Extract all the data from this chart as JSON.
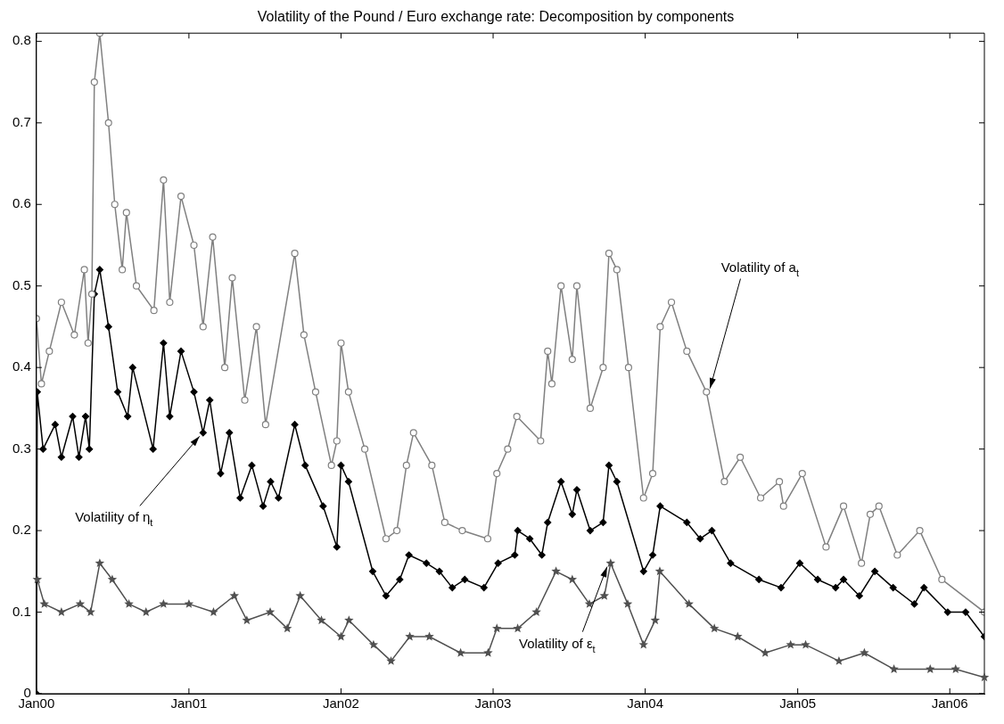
{
  "chart_data": {
    "type": "line",
    "title": "Volatility of the Pound / Euro exchange rate: Decomposition by components",
    "xlim": [
      "2000-01-01",
      "2006-03-25"
    ],
    "xticks": [
      {
        "value": "2000-01-01",
        "label": "Jan00"
      },
      {
        "value": "2001-01-01",
        "label": "Jan01"
      },
      {
        "value": "2002-01-01",
        "label": "Jan02"
      },
      {
        "value": "2003-01-01",
        "label": "Jan03"
      },
      {
        "value": "2004-01-01",
        "label": "Jan04"
      },
      {
        "value": "2005-01-01",
        "label": "Jan05"
      },
      {
        "value": "2006-01-01",
        "label": "Jan06"
      }
    ],
    "ylim": [
      0,
      0.81
    ],
    "yticks": [
      0,
      0.1,
      0.2,
      0.3,
      0.4,
      0.5,
      0.6,
      0.7,
      0.8
    ],
    "grid": false,
    "legend": false,
    "line_style": "solid",
    "series": [
      {
        "color": "#808080",
        "marker": "circle",
        "x": [
          "2000-01-01",
          "2000-01-13",
          "2000-02-01",
          "2000-03-01",
          "2000-04-01",
          "2000-04-25",
          "2000-05-04",
          "2000-05-13",
          "2000-05-19",
          "2000-06-01",
          "2000-06-22",
          "2000-07-07",
          "2000-07-25",
          "2000-08-04",
          "2000-08-28",
          "2000-10-09",
          "2000-11-01",
          "2000-11-16",
          "2000-12-13",
          "2001-01-13",
          "2001-02-04",
          "2001-02-27",
          "2001-03-28",
          "2001-04-15",
          "2001-05-15",
          "2001-06-12",
          "2001-07-04",
          "2001-09-12",
          "2001-10-04",
          "2001-11-01",
          "2001-12-09",
          "2001-12-22",
          "2002-01-01",
          "2002-01-19",
          "2002-02-27",
          "2002-04-19",
          "2002-05-15",
          "2002-06-07",
          "2002-06-24",
          "2002-08-07",
          "2002-09-07",
          "2002-10-19",
          "2002-12-19",
          "2003-01-10",
          "2003-02-05",
          "2003-02-27",
          "2003-04-25",
          "2003-05-12",
          "2003-05-22",
          "2003-06-13",
          "2003-07-10",
          "2003-07-21",
          "2003-08-22",
          "2003-09-22",
          "2003-10-06",
          "2003-10-25",
          "2003-11-22",
          "2003-12-28",
          "2004-01-19",
          "2004-02-06",
          "2004-03-04",
          "2004-04-10",
          "2004-05-27",
          "2004-07-09",
          "2004-08-16",
          "2004-10-04",
          "2004-11-18",
          "2004-11-28",
          "2005-01-12",
          "2005-03-10",
          "2005-04-21",
          "2005-06-03",
          "2005-06-24",
          "2005-07-15",
          "2005-08-28",
          "2005-10-21",
          "2005-12-13",
          "2006-03-25"
        ],
        "values": [
          0.46,
          0.38,
          0.42,
          0.48,
          0.44,
          0.52,
          0.43,
          0.49,
          0.75,
          0.81,
          0.7,
          0.6,
          0.52,
          0.59,
          0.5,
          0.47,
          0.63,
          0.48,
          0.61,
          0.55,
          0.45,
          0.56,
          0.4,
          0.51,
          0.36,
          0.45,
          0.33,
          0.54,
          0.44,
          0.37,
          0.28,
          0.31,
          0.43,
          0.37,
          0.3,
          0.19,
          0.2,
          0.28,
          0.32,
          0.28,
          0.21,
          0.2,
          0.19,
          0.27,
          0.3,
          0.34,
          0.31,
          0.42,
          0.38,
          0.5,
          0.41,
          0.5,
          0.35,
          0.4,
          0.54,
          0.52,
          0.4,
          0.24,
          0.27,
          0.45,
          0.48,
          0.42,
          0.37,
          0.26,
          0.29,
          0.24,
          0.26,
          0.23,
          0.27,
          0.18,
          0.23,
          0.16,
          0.22,
          0.23,
          0.17,
          0.2,
          0.14,
          0.1
        ]
      },
      {
        "color": "#000000",
        "marker": "diamond",
        "x": [
          "2000-01-01",
          "2000-01-03",
          "2000-01-17",
          "2000-02-15",
          "2000-03-01",
          "2000-03-28",
          "2000-04-12",
          "2000-04-28",
          "2000-05-07",
          "2000-05-19",
          "2000-06-01",
          "2000-06-22",
          "2000-07-14",
          "2000-08-07",
          "2000-08-19",
          "2000-10-07",
          "2000-11-01",
          "2000-11-16",
          "2000-12-13",
          "2001-01-13",
          "2001-02-04",
          "2001-02-20",
          "2001-03-18",
          "2001-04-08",
          "2001-05-04",
          "2001-06-01",
          "2001-06-28",
          "2001-07-16",
          "2001-08-04",
          "2001-09-12",
          "2001-10-07",
          "2001-11-19",
          "2001-12-22",
          "2002-01-01",
          "2002-01-19",
          "2002-03-18",
          "2002-04-19",
          "2002-05-22",
          "2002-06-13",
          "2002-07-25",
          "2002-08-25",
          "2002-09-25",
          "2002-10-25",
          "2002-12-10",
          "2003-01-13",
          "2003-02-22",
          "2003-03-01",
          "2003-03-30",
          "2003-04-28",
          "2003-05-12",
          "2003-06-13",
          "2003-07-10",
          "2003-07-21",
          "2003-08-22",
          "2003-09-22",
          "2003-10-06",
          "2003-10-25",
          "2003-12-28",
          "2004-01-19",
          "2004-02-06",
          "2004-04-10",
          "2004-05-12",
          "2004-06-09",
          "2004-07-24",
          "2004-09-30",
          "2004-11-22",
          "2005-01-06",
          "2005-02-18",
          "2005-04-02",
          "2005-04-21",
          "2005-05-29",
          "2005-07-05",
          "2005-08-18",
          "2005-10-08",
          "2005-10-31",
          "2005-12-27",
          "2006-02-08",
          "2006-03-25"
        ],
        "values": [
          0,
          0.37,
          0.3,
          0.33,
          0.29,
          0.34,
          0.29,
          0.34,
          0.3,
          0.49,
          0.52,
          0.45,
          0.37,
          0.34,
          0.4,
          0.3,
          0.43,
          0.34,
          0.42,
          0.37,
          0.32,
          0.36,
          0.27,
          0.32,
          0.24,
          0.28,
          0.23,
          0.26,
          0.24,
          0.33,
          0.28,
          0.23,
          0.18,
          0.28,
          0.26,
          0.15,
          0.12,
          0.14,
          0.17,
          0.16,
          0.15,
          0.13,
          0.14,
          0.13,
          0.16,
          0.17,
          0.2,
          0.19,
          0.17,
          0.21,
          0.26,
          0.22,
          0.25,
          0.2,
          0.21,
          0.28,
          0.26,
          0.15,
          0.17,
          0.23,
          0.21,
          0.19,
          0.2,
          0.16,
          0.14,
          0.13,
          0.16,
          0.14,
          0.13,
          0.14,
          0.12,
          0.15,
          0.13,
          0.11,
          0.13,
          0.1,
          0.1,
          0.07
        ]
      },
      {
        "color": "#505050",
        "marker": "star",
        "x": [
          "2000-01-03",
          "2000-01-20",
          "2000-03-01",
          "2000-04-15",
          "2000-05-10",
          "2000-06-01",
          "2000-07-01",
          "2000-08-10",
          "2000-09-20",
          "2000-11-01",
          "2001-01-01",
          "2001-03-01",
          "2001-04-20",
          "2001-05-20",
          "2001-07-15",
          "2001-08-25",
          "2001-09-25",
          "2001-11-15",
          "2002-01-01",
          "2002-01-20",
          "2002-03-20",
          "2002-05-01",
          "2002-06-15",
          "2002-08-01",
          "2002-10-15",
          "2002-12-20",
          "2003-01-10",
          "2003-03-01",
          "2003-04-15",
          "2003-06-01",
          "2003-07-10",
          "2003-08-20",
          "2003-09-25",
          "2003-10-10",
          "2003-11-20",
          "2003-12-28",
          "2004-01-25",
          "2004-02-05",
          "2004-04-15",
          "2004-06-15",
          "2004-08-10",
          "2004-10-15",
          "2004-12-15",
          "2005-01-20",
          "2005-04-10",
          "2005-06-10",
          "2005-08-20",
          "2005-11-15",
          "2006-01-15",
          "2006-03-25"
        ],
        "values": [
          0.14,
          0.11,
          0.1,
          0.11,
          0.1,
          0.16,
          0.14,
          0.11,
          0.1,
          0.11,
          0.11,
          0.1,
          0.12,
          0.09,
          0.1,
          0.08,
          0.12,
          0.09,
          0.07,
          0.09,
          0.06,
          0.04,
          0.07,
          0.07,
          0.05,
          0.05,
          0.08,
          0.08,
          0.1,
          0.15,
          0.14,
          0.11,
          0.12,
          0.16,
          0.11,
          0.06,
          0.09,
          0.15,
          0.11,
          0.08,
          0.07,
          0.05,
          0.06,
          0.06,
          0.04,
          0.05,
          0.03,
          0.03,
          0.03,
          0.02
        ]
      }
    ],
    "annotations": [
      {
        "text": "Volatility of a$_{t}$",
        "x": "2004-05-27",
        "y": 0.37
      },
      {
        "text": "Volatility of η$_{t}$",
        "x": "2001-02-04",
        "y": 0.32
      },
      {
        "text": "Volatility of ε$_{t}$",
        "x": "2003-10-10",
        "y": 0.16
      }
    ]
  }
}
